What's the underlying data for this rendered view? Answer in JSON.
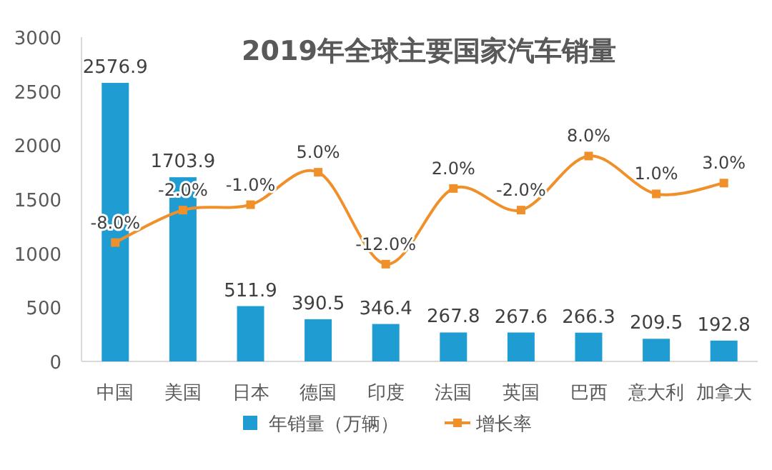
{
  "chart_data": {
    "type": "bar",
    "title": "2019年全球主要国家汽车销量",
    "categories": [
      "中国",
      "美国",
      "日本",
      "德国",
      "印度",
      "法国",
      "英国",
      "巴西",
      "意大利",
      "加拿大"
    ],
    "series": [
      {
        "name": "年销量（万辆）",
        "color": "#1f9dd3",
        "values": [
          2576.9,
          1703.9,
          511.9,
          390.5,
          346.4,
          267.8,
          267.6,
          266.3,
          209.5,
          192.8
        ],
        "value_labels": [
          "2576.9",
          "1703.9",
          "511.9",
          "390.5",
          "346.4",
          "267.8",
          "267.6",
          "266.3",
          "209.5",
          "192.8"
        ]
      },
      {
        "name": "增长率",
        "type": "line",
        "axis": "y2",
        "color": "#f0902a",
        "marker": "square",
        "values": [
          -8.0,
          -2.0,
          -1.0,
          5.0,
          -12.0,
          2.0,
          -2.0,
          8.0,
          1.0,
          3.0
        ],
        "value_labels": [
          "-8.0%",
          "-2.0%",
          "-1.0%",
          "5.0%",
          "-12.0%",
          "2.0%",
          "-2.0%",
          "8.0%",
          "1.0%",
          "3.0%"
        ]
      }
    ],
    "ylim": [
      0,
      3000
    ],
    "yticks": [
      0,
      500,
      1000,
      1500,
      2000,
      2500,
      3000
    ],
    "y2lim": [
      -30,
      30
    ],
    "legend": "bottom",
    "grid": false
  }
}
